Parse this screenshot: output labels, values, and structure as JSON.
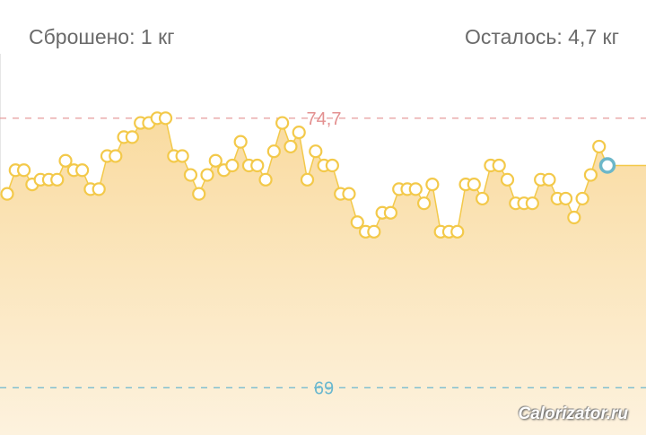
{
  "header": {
    "lost": "Сброшено: 1 кг",
    "remaining": "Осталось: 4,7 кг"
  },
  "chart_data": {
    "type": "area",
    "values": [
      73.1,
      73.6,
      73.6,
      73.3,
      73.4,
      73.4,
      73.4,
      73.8,
      73.6,
      73.6,
      73.2,
      73.2,
      73.9,
      73.9,
      74.3,
      74.3,
      74.6,
      74.6,
      74.7,
      74.7,
      73.9,
      73.9,
      73.5,
      73.1,
      73.5,
      73.8,
      73.6,
      73.7,
      74.2,
      73.7,
      73.7,
      73.4,
      74.0,
      74.6,
      74.1,
      74.4,
      73.4,
      74.0,
      73.7,
      73.7,
      73.1,
      73.1,
      72.5,
      72.3,
      72.3,
      72.7,
      72.7,
      73.2,
      73.2,
      73.2,
      72.9,
      73.3,
      72.3,
      72.3,
      72.3,
      73.3,
      73.3,
      73.0,
      73.7,
      73.7,
      73.4,
      72.9,
      72.9,
      72.9,
      73.4,
      73.4,
      73.0,
      73.0,
      72.6,
      73.0,
      73.5,
      74.1,
      73.7
    ],
    "color": "#f3c94a",
    "ylim": [
      68.0,
      77.2
    ],
    "reference_lines": [
      {
        "value": 74.7,
        "label": "74,7",
        "color": "#e39090"
      },
      {
        "value": 69,
        "label": "69",
        "color": "#6bb8cf"
      }
    ]
  },
  "watermark": "Calorizator.ru"
}
